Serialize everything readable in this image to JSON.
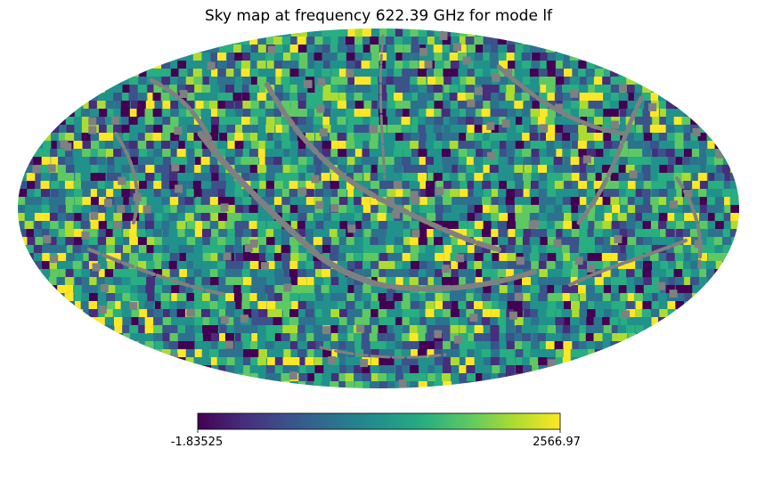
{
  "chart_data": {
    "type": "heatmap",
    "projection": "mollweide",
    "title": "Sky map at frequency 622.39 GHz for mode lf",
    "colormap": "viridis",
    "colormap_stops": [
      "#440154",
      "#472d7b",
      "#3b528b",
      "#2c728e",
      "#21918c",
      "#28ae80",
      "#5ec962",
      "#addc30",
      "#fde725"
    ],
    "masked_color": "#808080",
    "colorbar": {
      "min": -1.83525,
      "max": 2566.97,
      "min_label": "-1.83525",
      "max_label": "2566.97",
      "orientation": "horizontal"
    },
    "value_range": [
      -1.83525,
      2566.97
    ],
    "xlabel": "",
    "ylabel": "",
    "grid": false
  }
}
